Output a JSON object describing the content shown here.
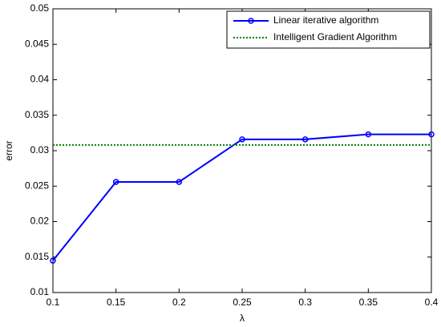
{
  "chart_data": {
    "type": "line",
    "xlabel": "λ",
    "ylabel": "error",
    "x": [
      0.1,
      0.15,
      0.2,
      0.25,
      0.3,
      0.35,
      0.4
    ],
    "series": [
      {
        "name": "Linear iterative algorithm",
        "color": "#0000ff",
        "linestyle": "solid",
        "marker": "circle",
        "values": [
          0.0145,
          0.0256,
          0.0256,
          0.0316,
          0.0316,
          0.0323,
          0.0323
        ]
      },
      {
        "name": "Intelligent Gradient Algorithm",
        "color": "#008000",
        "linestyle": "dotted",
        "marker": null,
        "values": [
          0.0308,
          0.0308,
          0.0308,
          0.0308,
          0.0308,
          0.0308,
          0.0308
        ]
      }
    ],
    "xlim": [
      0.1,
      0.4
    ],
    "xticks": [
      0.1,
      0.15,
      0.2,
      0.25,
      0.3,
      0.35,
      0.4
    ],
    "ylim": [
      0.01,
      0.05
    ],
    "yticks": [
      0.01,
      0.015,
      0.02,
      0.025,
      0.03,
      0.035,
      0.04,
      0.045,
      0.05
    ],
    "grid": false,
    "legend": "upper right"
  }
}
